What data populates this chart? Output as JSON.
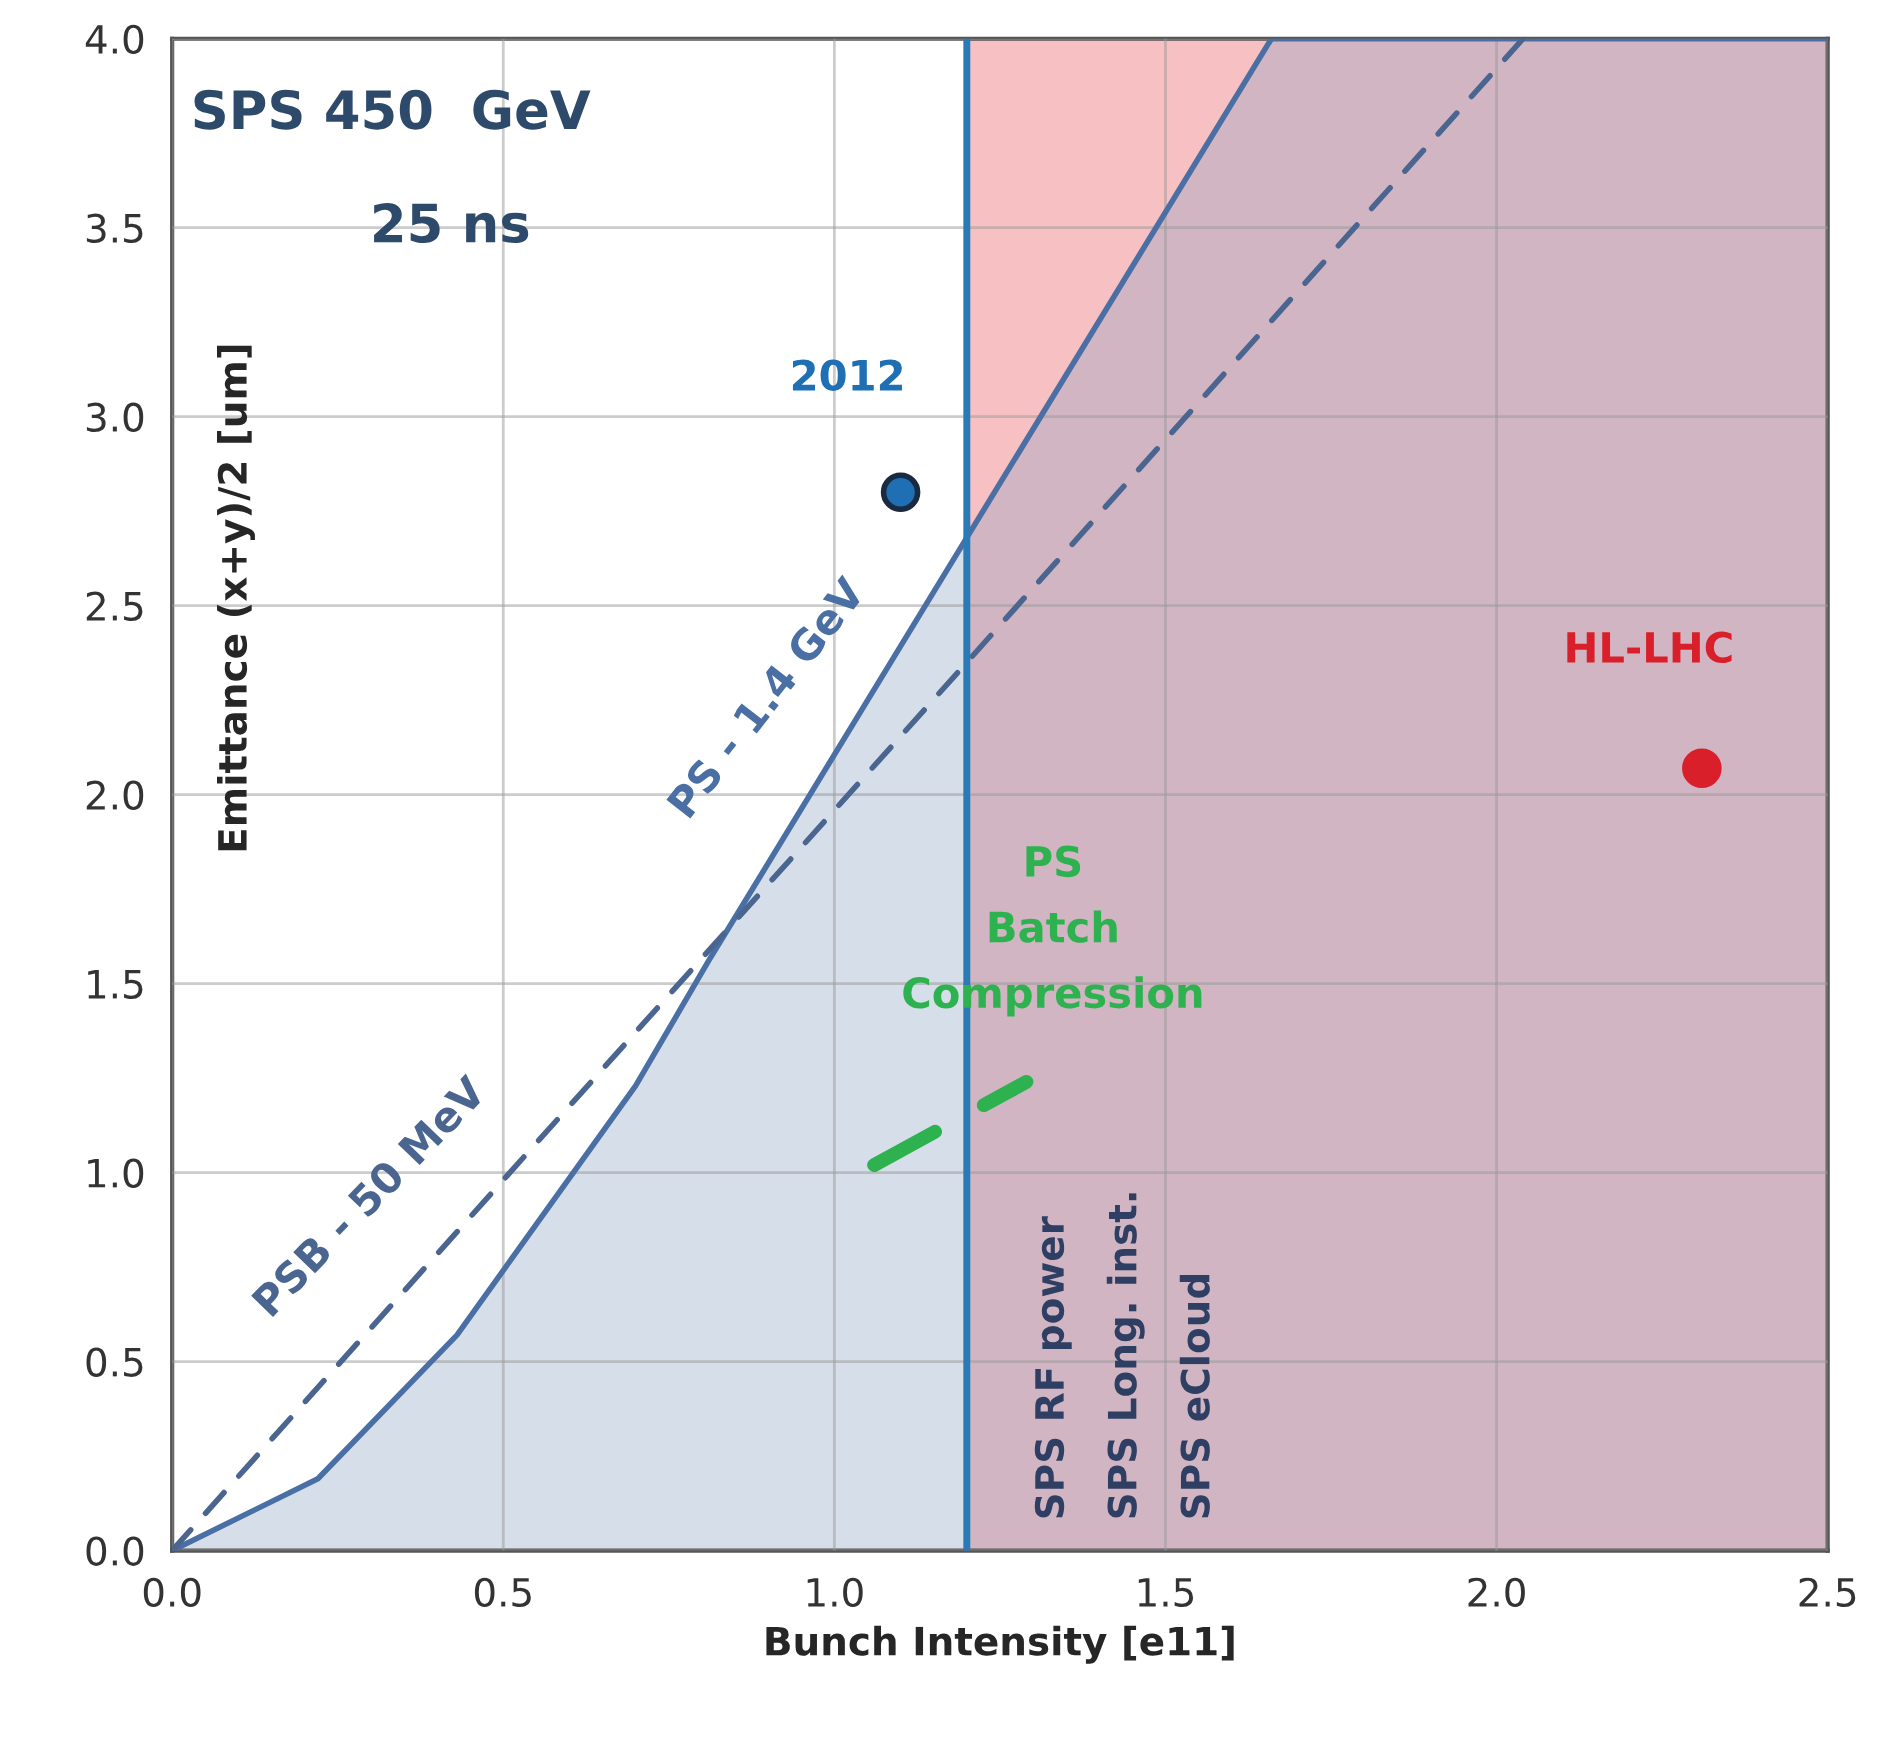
{
  "chart_data": {
    "type": "line",
    "xlabel": "Bunch Intensity [e11]",
    "ylabel": "Emittance (x+y)/2 [um]",
    "xlim": [
      0,
      2.5
    ],
    "ylim": [
      0,
      4.0
    ],
    "xticks": [
      {
        "value": 0,
        "label": "0.0"
      },
      {
        "value": 0.5,
        "label": "0.5"
      },
      {
        "value": 1.0,
        "label": "1.0"
      },
      {
        "value": 1.5,
        "label": "1.5"
      },
      {
        "value": 2.0,
        "label": "2.0"
      },
      {
        "value": 2.5,
        "label": "2.5"
      }
    ],
    "yticks": [
      {
        "value": 0,
        "label": "0.0"
      },
      {
        "value": 0.5,
        "label": "0.5"
      },
      {
        "value": 1.0,
        "label": "1.0"
      },
      {
        "value": 1.5,
        "label": "1.5"
      },
      {
        "value": 2.0,
        "label": "2.0"
      },
      {
        "value": 2.5,
        "label": "2.5"
      },
      {
        "value": 3.0,
        "label": "3.0"
      },
      {
        "value": 3.5,
        "label": "3.5"
      },
      {
        "value": 4.0,
        "label": "4.0"
      }
    ],
    "grid": true,
    "legend": false,
    "series": [
      {
        "type": "area",
        "name": "PS - 1.4 GeV",
        "color": "#4a6fa5",
        "x": [
          0,
          0.22,
          0.43,
          0.7,
          0.81,
          1.2,
          1.66,
          2.5
        ],
        "values": [
          0,
          0.19,
          0.57,
          1.23,
          1.56,
          2.68,
          4.0,
          4.0
        ]
      },
      {
        "name": "PSB - 50 MeV",
        "color": "#4a6690",
        "line_style": "dashed",
        "x": [
          0,
          0.51,
          1.2,
          2.04
        ],
        "values": [
          0,
          1.0,
          2.35,
          4.0
        ]
      },
      {
        "name": "PS\nBatch\nCompression",
        "color": "#2eb24f",
        "line_style": "dashed",
        "x": [
          1.06,
          1.29
        ],
        "values": [
          1.02,
          1.24
        ]
      },
      {
        "type": "scatter",
        "name": "2012",
        "color": "#1f6fb5",
        "x": [
          1.1
        ],
        "values": [
          2.8
        ]
      },
      {
        "type": "scatter",
        "name": "HL-LHC",
        "color": "#d9202a",
        "x": [
          2.31
        ],
        "values": [
          2.07
        ]
      }
    ],
    "ref_lines": [
      {
        "axis": "x",
        "value": 1.2,
        "color": "#2a7ab8"
      }
    ],
    "bands": [
      {
        "axis": "x",
        "from": 1.2,
        "to": 2.5,
        "color": "#f7c0c3"
      }
    ],
    "annotations": [
      "SPS 450  GeV",
      "25 ns",
      "SPS RF power",
      "SPS Long. inst.",
      "SPS eCloud"
    ]
  }
}
